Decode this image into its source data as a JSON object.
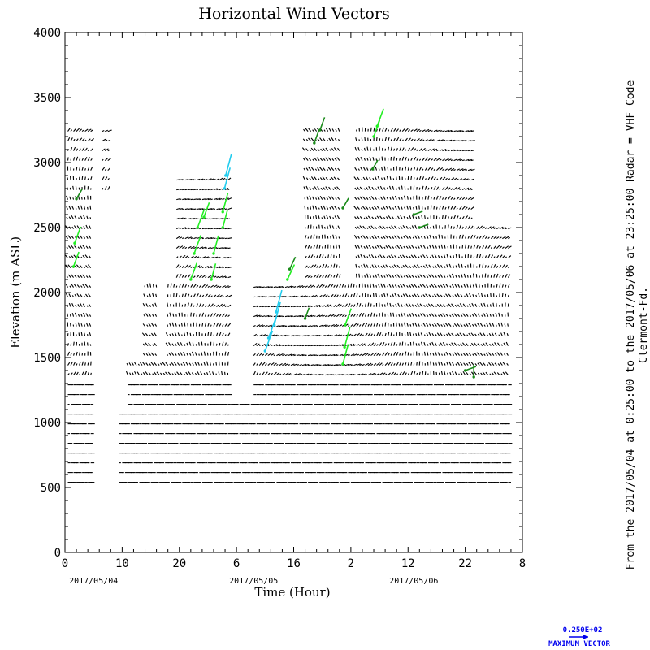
{
  "chart_data": {
    "type": "scatter",
    "title": "Horizontal Wind Vectors",
    "xlabel": "Time (Hour)",
    "ylabel": "Elevation (m ASL)",
    "x_tick_labels": [
      "0",
      "10",
      "20",
      "6",
      "16",
      "2",
      "12",
      "22",
      "8"
    ],
    "x_range_hours": [
      0,
      80
    ],
    "y_ticks": [
      0,
      500,
      1000,
      1500,
      2000,
      2500,
      3000,
      3500,
      4000
    ],
    "ylim": [
      0,
      4000
    ],
    "date_labels": [
      {
        "text": "2017/05/04",
        "hour": 5
      },
      {
        "text": "2017/05/05",
        "hour": 33
      },
      {
        "text": "2017/05/06",
        "hour": 61
      }
    ],
    "side_note_lines": [
      "From the 2017/05/04 at  0:25:00 to the 2017/05/06 at 23:25:00 Radar = VHF Code",
      "Clermont-Fd."
    ],
    "max_vector_value": "0.250E+02",
    "max_vector_label": "MAXIMUM VECTOR",
    "colors": {
      "axis": "#000000",
      "weak": "#000000",
      "moderate": "#1a8a1a",
      "strong": "#22ee22",
      "strongest": "#22ccee",
      "legend": "#0000ee"
    },
    "grid": false,
    "data_extents": [
      {
        "t0": 0.5,
        "t1": 4.8,
        "z0": 540,
        "z1": 3300
      },
      {
        "t0": 6.5,
        "t1": 7.6,
        "z0": 2750,
        "z1": 3300
      },
      {
        "t0": 9.3,
        "t1": 10.6,
        "z0": 540,
        "z1": 1100
      },
      {
        "t0": 10.6,
        "t1": 19.0,
        "z0": 540,
        "z1": 1500
      },
      {
        "t0": 14.0,
        "t1": 16.0,
        "z0": 1500,
        "z1": 2070
      },
      {
        "t0": 18.0,
        "t1": 19.0,
        "z0": 1500,
        "z1": 2050
      },
      {
        "t0": 19.5,
        "t1": 28.5,
        "z0": 540,
        "z1": 2900
      },
      {
        "t0": 29.0,
        "t1": 37.0,
        "z0": 540,
        "z1": 1150
      },
      {
        "t0": 33.0,
        "t1": 42.0,
        "z0": 540,
        "z1": 2050
      },
      {
        "t0": 42.0,
        "t1": 48.0,
        "z0": 540,
        "z1": 3300
      },
      {
        "t0": 48.0,
        "t1": 50.5,
        "z0": 540,
        "z1": 2050
      },
      {
        "t0": 51.0,
        "t1": 56.0,
        "z0": 540,
        "z1": 3300
      },
      {
        "t0": 56.0,
        "t1": 71.0,
        "z0": 540,
        "z1": 3300
      },
      {
        "t0": 71.0,
        "t1": 77.5,
        "z0": 540,
        "z1": 2500
      }
    ],
    "strong_vectors": [
      {
        "t": 1.5,
        "z": 2200,
        "speed": 14,
        "dir": 200
      },
      {
        "t": 1.7,
        "z": 2380,
        "speed": 16,
        "dir": 200
      },
      {
        "t": 2.0,
        "z": 2720,
        "speed": 10,
        "dir": 210
      },
      {
        "t": 22.0,
        "z": 2100,
        "speed": 16,
        "dir": 200
      },
      {
        "t": 22.6,
        "z": 2300,
        "speed": 18,
        "dir": 200
      },
      {
        "t": 23.2,
        "z": 2500,
        "speed": 18,
        "dir": 200
      },
      {
        "t": 24.3,
        "z": 2580,
        "speed": 14,
        "dir": 200
      },
      {
        "t": 25.6,
        "z": 2100,
        "speed": 15,
        "dir": 195
      },
      {
        "t": 26.0,
        "z": 2300,
        "speed": 17,
        "dir": 195
      },
      {
        "t": 27.6,
        "z": 2500,
        "speed": 17,
        "dir": 195
      },
      {
        "t": 27.6,
        "z": 2620,
        "speed": 18,
        "dir": 195
      },
      {
        "t": 27.9,
        "z": 2800,
        "speed": 20,
        "dir": 195
      },
      {
        "t": 28.1,
        "z": 2900,
        "speed": 21,
        "dir": 195
      },
      {
        "t": 35.0,
        "z": 1550,
        "speed": 20,
        "dir": 200
      },
      {
        "t": 35.6,
        "z": 1650,
        "speed": 20,
        "dir": 200
      },
      {
        "t": 36.6,
        "z": 1750,
        "speed": 22,
        "dir": 195
      },
      {
        "t": 36.9,
        "z": 1850,
        "speed": 21,
        "dir": 195
      },
      {
        "t": 38.9,
        "z": 2100,
        "speed": 15,
        "dir": 205
      },
      {
        "t": 39.3,
        "z": 2180,
        "speed": 12,
        "dir": 205
      },
      {
        "t": 42.0,
        "z": 1800,
        "speed": 10,
        "dir": 200
      },
      {
        "t": 43.6,
        "z": 3150,
        "speed": 12,
        "dir": 200
      },
      {
        "t": 44.6,
        "z": 3250,
        "speed": 12,
        "dir": 200
      },
      {
        "t": 48.6,
        "z": 1450,
        "speed": 19,
        "dir": 195
      },
      {
        "t": 48.9,
        "z": 1580,
        "speed": 19,
        "dir": 195
      },
      {
        "t": 49.0,
        "z": 1750,
        "speed": 16,
        "dir": 200
      },
      {
        "t": 48.6,
        "z": 2650,
        "speed": 10,
        "dir": 210
      },
      {
        "t": 54.0,
        "z": 3200,
        "speed": 16,
        "dir": 200
      },
      {
        "t": 54.6,
        "z": 3280,
        "speed": 17,
        "dir": 200
      },
      {
        "t": 53.8,
        "z": 2950,
        "speed": 9,
        "dir": 210
      },
      {
        "t": 61.0,
        "z": 2600,
        "speed": 8,
        "dir": 250
      },
      {
        "t": 62.0,
        "z": 2500,
        "speed": 8,
        "dir": 250
      },
      {
        "t": 70.0,
        "z": 1400,
        "speed": 10,
        "dir": 250
      },
      {
        "t": 71.5,
        "z": 1350,
        "speed": 11,
        "dir": 180
      }
    ]
  }
}
